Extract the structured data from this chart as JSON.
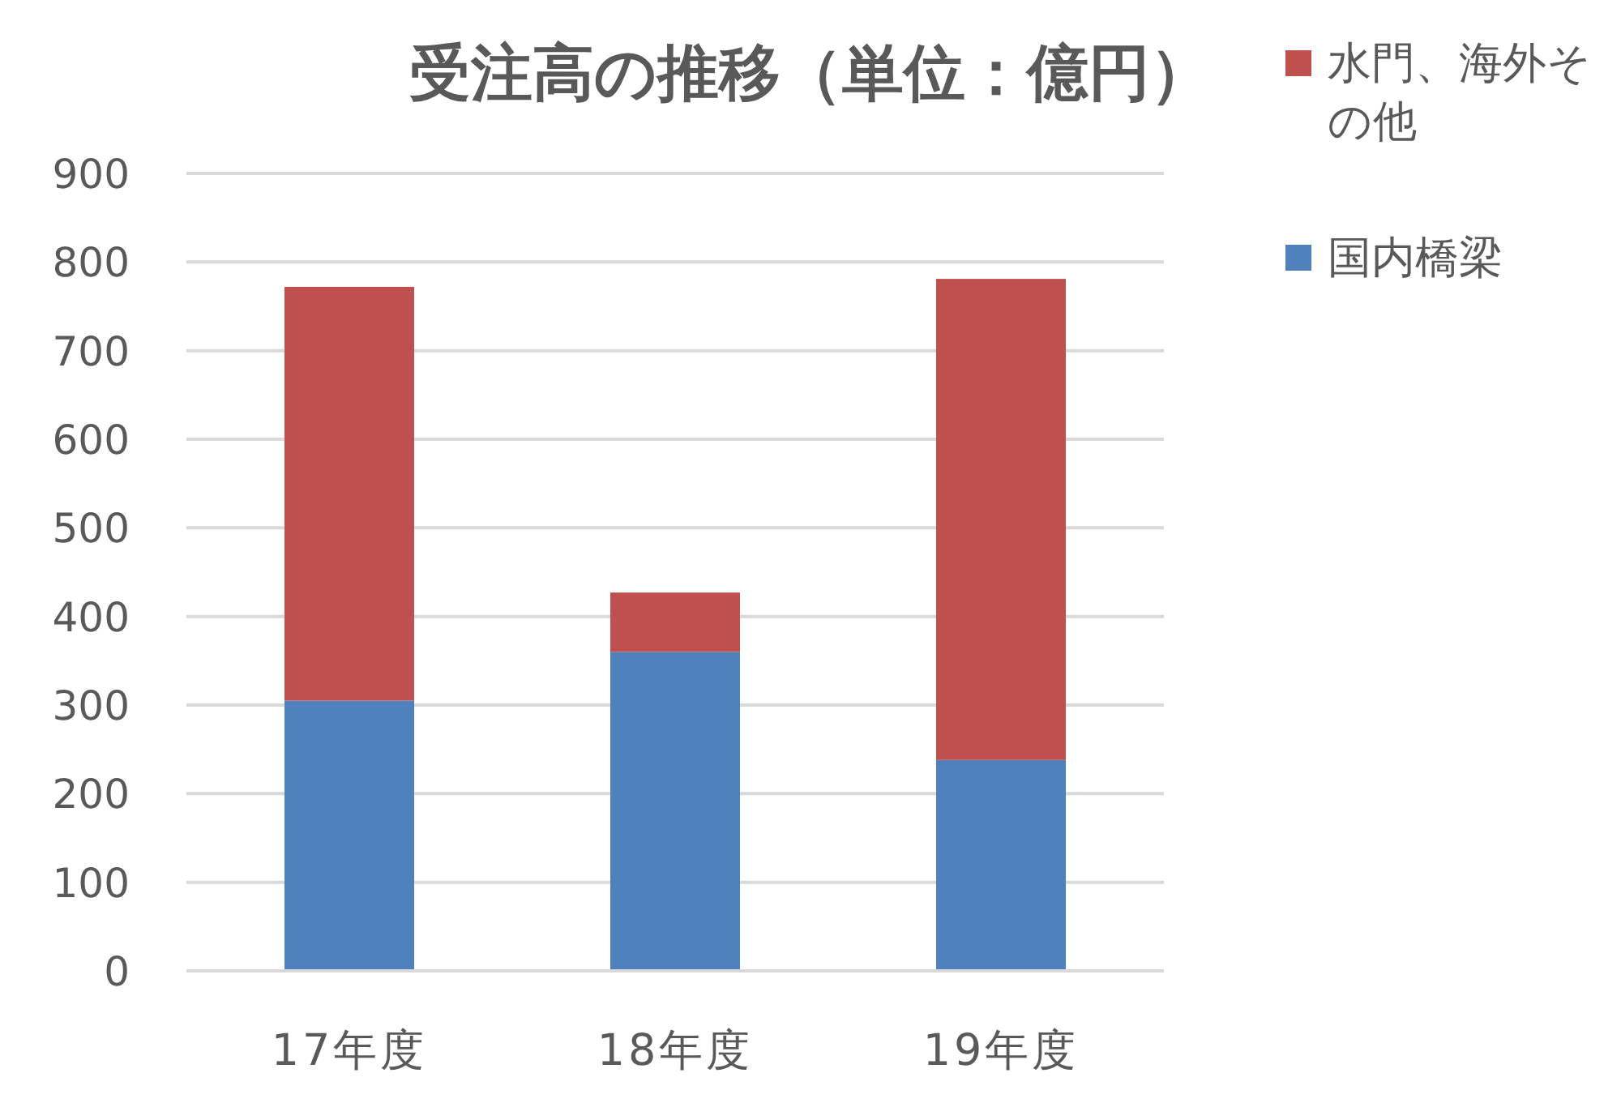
{
  "chart_data": {
    "type": "bar",
    "title": "受注高の推移（単位：億円）",
    "stacked": true,
    "categories": [
      "17年度",
      "18年度",
      "19年度"
    ],
    "series": [
      {
        "name": "国内橋梁",
        "color": "#4f81bd",
        "values": [
          305,
          360,
          238
        ]
      },
      {
        "name": "水門、海外その他",
        "color": "#c0504d",
        "values": [
          467,
          67,
          543
        ]
      }
    ],
    "ylim": [
      0,
      900
    ],
    "yticks": [
      0,
      100,
      200,
      300,
      400,
      500,
      600,
      700,
      800,
      900
    ],
    "grid": "y",
    "legend": "right"
  }
}
